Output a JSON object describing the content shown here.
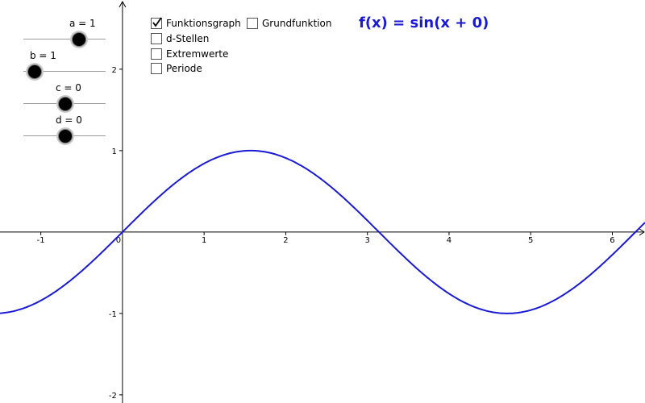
{
  "formula": "f(x) = sin(x + 0)",
  "sliders": [
    {
      "label": "a = 1",
      "fraction": 0.667
    },
    {
      "label": "b = 1",
      "fraction": 0.125
    },
    {
      "label": "c = 0",
      "fraction": 0.5
    },
    {
      "label": "d = 0",
      "fraction": 0.5
    }
  ],
  "checkboxes": [
    {
      "label": "Funktionsgraph",
      "checked": true
    },
    {
      "label": "Grundfunktion",
      "checked": false
    },
    {
      "label": "d-Stellen",
      "checked": false
    },
    {
      "label": "Extremwerte",
      "checked": false
    },
    {
      "label": "Periode",
      "checked": false
    }
  ],
  "colors": {
    "curve": "#1a1ad6",
    "axis": "#000000"
  },
  "chart_data": {
    "type": "line",
    "function": "sin(x + 0)",
    "xlim": [
      -1.5,
      6.4
    ],
    "ylim": [
      -2.1,
      2.85
    ],
    "x_ticks": [
      "-1",
      "0",
      "1",
      "2",
      "3",
      "4",
      "5",
      "6"
    ],
    "y_ticks": [
      "-2",
      "-1",
      "1",
      "2"
    ],
    "series": [
      {
        "values_from": "sin(x)"
      }
    ]
  }
}
